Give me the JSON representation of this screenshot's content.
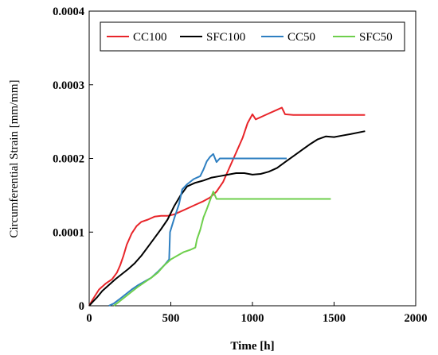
{
  "chart_data": {
    "type": "line",
    "xlabel": "Time [h]",
    "ylabel": "Circumferential Strain [mm/mm]",
    "xlim": [
      0,
      2000
    ],
    "ylim": [
      0,
      0.0004
    ],
    "x_ticks": [
      "0",
      "500",
      "1000",
      "1500",
      "2000"
    ],
    "y_ticks": [
      "0",
      "0.0001",
      "0.0002",
      "0.0003",
      "0.0004"
    ],
    "grid": false,
    "legend_position": "top",
    "series": [
      {
        "name": "CC100",
        "color": "#e8252a",
        "points": [
          [
            0,
            0
          ],
          [
            20,
            8e-06
          ],
          [
            40,
            1.5e-05
          ],
          [
            60,
            2.2e-05
          ],
          [
            100,
            3e-05
          ],
          [
            140,
            3.6e-05
          ],
          [
            170,
            4.5e-05
          ],
          [
            190,
            5.5e-05
          ],
          [
            210,
            6.8e-05
          ],
          [
            230,
            8.3e-05
          ],
          [
            260,
            9.8e-05
          ],
          [
            290,
            0.000108
          ],
          [
            320,
            0.000114
          ],
          [
            360,
            0.000117
          ],
          [
            400,
            0.000121
          ],
          [
            440,
            0.000122
          ],
          [
            480,
            0.000122
          ],
          [
            520,
            0.000124
          ],
          [
            560,
            0.000128
          ],
          [
            600,
            0.000132
          ],
          [
            650,
            0.000137
          ],
          [
            700,
            0.000142
          ],
          [
            740,
            0.000147
          ],
          [
            780,
            0.000155
          ],
          [
            820,
            0.000168
          ],
          [
            860,
            0.000188
          ],
          [
            900,
            0.000208
          ],
          [
            940,
            0.000228
          ],
          [
            970,
            0.000248
          ],
          [
            1000,
            0.00026
          ],
          [
            1020,
            0.000253
          ],
          [
            1060,
            0.000257
          ],
          [
            1100,
            0.000261
          ],
          [
            1150,
            0.000266
          ],
          [
            1180,
            0.000269
          ],
          [
            1200,
            0.00026
          ],
          [
            1250,
            0.000259
          ],
          [
            1690,
            0.000259
          ]
        ]
      },
      {
        "name": "SFC100",
        "color": "#000000",
        "points": [
          [
            0,
            0
          ],
          [
            20,
            5e-06
          ],
          [
            50,
            1.2e-05
          ],
          [
            80,
            2e-05
          ],
          [
            120,
            2.8e-05
          ],
          [
            160,
            3.6e-05
          ],
          [
            200,
            4.3e-05
          ],
          [
            240,
            5e-05
          ],
          [
            280,
            5.8e-05
          ],
          [
            320,
            6.8e-05
          ],
          [
            360,
            8e-05
          ],
          [
            400,
            9.2e-05
          ],
          [
            440,
            0.000104
          ],
          [
            480,
            0.000117
          ],
          [
            520,
            0.000135
          ],
          [
            560,
            0.00015
          ],
          [
            600,
            0.000162
          ],
          [
            650,
            0.000167
          ],
          [
            700,
            0.00017
          ],
          [
            750,
            0.000174
          ],
          [
            800,
            0.000176
          ],
          [
            850,
            0.000178
          ],
          [
            900,
            0.00018
          ],
          [
            950,
            0.00018
          ],
          [
            1000,
            0.000178
          ],
          [
            1050,
            0.000179
          ],
          [
            1100,
            0.000182
          ],
          [
            1150,
            0.000187
          ],
          [
            1200,
            0.000195
          ],
          [
            1250,
            0.000203
          ],
          [
            1300,
            0.000211
          ],
          [
            1350,
            0.000219
          ],
          [
            1400,
            0.000226
          ],
          [
            1450,
            0.00023
          ],
          [
            1500,
            0.000229
          ],
          [
            1550,
            0.000231
          ],
          [
            1600,
            0.000233
          ],
          [
            1690,
            0.000237
          ]
        ]
      },
      {
        "name": "CC50",
        "color": "#2e7fc1",
        "points": [
          [
            120,
            0
          ],
          [
            150,
            3e-06
          ],
          [
            180,
            8e-06
          ],
          [
            220,
            1.5e-05
          ],
          [
            260,
            2.2e-05
          ],
          [
            300,
            2.8e-05
          ],
          [
            340,
            3.3e-05
          ],
          [
            380,
            3.8e-05
          ],
          [
            420,
            4.6e-05
          ],
          [
            460,
            5.5e-05
          ],
          [
            490,
            6.3e-05
          ],
          [
            495,
            0.0001
          ],
          [
            520,
            0.000118
          ],
          [
            550,
            0.000138
          ],
          [
            570,
            0.000158
          ],
          [
            600,
            0.000165
          ],
          [
            640,
            0.000172
          ],
          [
            680,
            0.000176
          ],
          [
            700,
            0.000185
          ],
          [
            720,
            0.000196
          ],
          [
            740,
            0.000202
          ],
          [
            760,
            0.000206
          ],
          [
            780,
            0.000195
          ],
          [
            800,
            0.0002
          ],
          [
            900,
            0.0002
          ],
          [
            1000,
            0.0002
          ],
          [
            1100,
            0.0002
          ],
          [
            1210,
            0.0002
          ]
        ]
      },
      {
        "name": "SFC50",
        "color": "#6ecf4c",
        "points": [
          [
            150,
            0
          ],
          [
            180,
            5e-06
          ],
          [
            220,
            1.2e-05
          ],
          [
            260,
            1.9e-05
          ],
          [
            300,
            2.6e-05
          ],
          [
            340,
            3.2e-05
          ],
          [
            380,
            3.8e-05
          ],
          [
            420,
            4.5e-05
          ],
          [
            460,
            5.5e-05
          ],
          [
            500,
            6.3e-05
          ],
          [
            540,
            6.8e-05
          ],
          [
            580,
            7.3e-05
          ],
          [
            620,
            7.6e-05
          ],
          [
            650,
            7.9e-05
          ],
          [
            660,
            9e-05
          ],
          [
            680,
            0.000103
          ],
          [
            700,
            0.00012
          ],
          [
            720,
            0.000131
          ],
          [
            740,
            0.000143
          ],
          [
            760,
            0.000155
          ],
          [
            780,
            0.000145
          ],
          [
            800,
            0.000145
          ],
          [
            1000,
            0.000145
          ],
          [
            1200,
            0.000145
          ],
          [
            1480,
            0.000145
          ]
        ]
      }
    ]
  }
}
